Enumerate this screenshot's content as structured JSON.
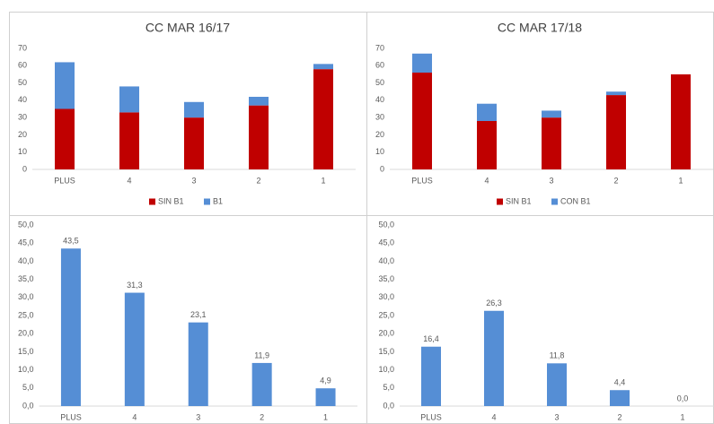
{
  "chart_data": [
    {
      "type": "bar",
      "title": "CC MAR 16/17",
      "stacked": true,
      "categories": [
        "PLUS",
        "4",
        "3",
        "2",
        "1"
      ],
      "series": [
        {
          "name": "SIN B1",
          "color": "#c00000",
          "values": [
            35,
            33,
            30,
            37,
            58
          ]
        },
        {
          "name": "B1",
          "color": "#558ed5",
          "values": [
            27,
            15,
            9,
            5,
            3
          ]
        }
      ],
      "ylim": [
        0,
        70
      ],
      "yticks": [
        0,
        10,
        20,
        30,
        40,
        50,
        60,
        70
      ],
      "legend": "bottom"
    },
    {
      "type": "bar",
      "title": "CC MAR 17/18",
      "stacked": true,
      "categories": [
        "PLUS",
        "4",
        "3",
        "2",
        "1"
      ],
      "series": [
        {
          "name": "SIN B1",
          "color": "#c00000",
          "values": [
            56,
            28,
            30,
            43,
            55
          ]
        },
        {
          "name": "CON B1",
          "color": "#558ed5",
          "values": [
            11,
            10,
            4,
            2,
            0
          ]
        }
      ],
      "ylim": [
        0,
        70
      ],
      "yticks": [
        0,
        10,
        20,
        30,
        40,
        50,
        60,
        70
      ],
      "legend": "bottom"
    },
    {
      "type": "bar",
      "categories": [
        "PLUS",
        "4",
        "3",
        "2",
        "1"
      ],
      "color": "#558ed5",
      "values": [
        43.5,
        31.3,
        23.1,
        11.9,
        4.9
      ],
      "value_labels": [
        "43,5",
        "31,3",
        "23,1",
        "11,9",
        "4,9"
      ],
      "ylim": [
        0,
        50
      ],
      "yticks": [
        {
          "value": 0,
          "label": "0,0"
        },
        {
          "value": 5,
          "label": "5,0"
        },
        {
          "value": 10,
          "label": "10,0"
        },
        {
          "value": 15,
          "label": "15,0"
        },
        {
          "value": 20,
          "label": "20,0"
        },
        {
          "value": 25,
          "label": "25,0"
        },
        {
          "value": 30,
          "label": "30,0"
        },
        {
          "value": 35,
          "label": "35,0"
        },
        {
          "value": 40,
          "label": "40,0"
        },
        {
          "value": 45,
          "label": "45,0"
        },
        {
          "value": 50,
          "label": "50,0"
        }
      ]
    },
    {
      "type": "bar",
      "categories": [
        "PLUS",
        "4",
        "3",
        "2",
        "1"
      ],
      "color": "#558ed5",
      "values": [
        16.4,
        26.3,
        11.8,
        4.4,
        0.0
      ],
      "value_labels": [
        "16,4",
        "26,3",
        "11,8",
        "4,4",
        "0,0"
      ],
      "ylim": [
        0,
        50
      ],
      "yticks": [
        {
          "value": 0,
          "label": "0,0"
        },
        {
          "value": 5,
          "label": "5,0"
        },
        {
          "value": 10,
          "label": "10,0"
        },
        {
          "value": 15,
          "label": "15,0"
        },
        {
          "value": 20,
          "label": "20,0"
        },
        {
          "value": 25,
          "label": "25,0"
        },
        {
          "value": 30,
          "label": "30,0"
        },
        {
          "value": 35,
          "label": "35,0"
        },
        {
          "value": 40,
          "label": "40,0"
        },
        {
          "value": 45,
          "label": "45,0"
        },
        {
          "value": 50,
          "label": "50,0"
        }
      ]
    }
  ]
}
